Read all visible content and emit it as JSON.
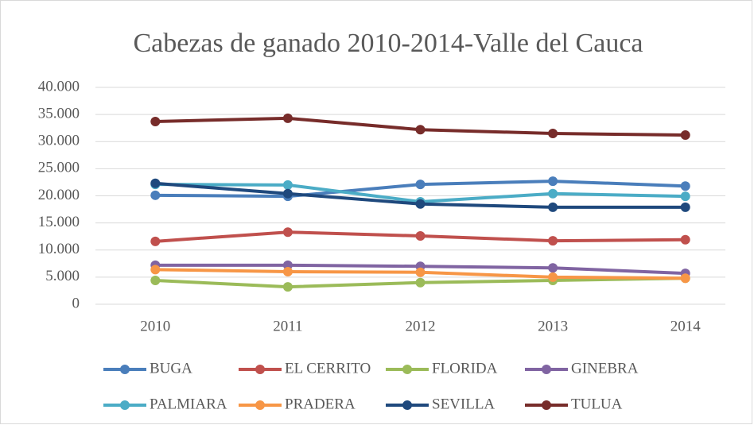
{
  "chart_data": {
    "type": "line",
    "title": "Cabezas de ganado 2010-2014-Valle del Cauca",
    "categories": [
      "2010",
      "2011",
      "2012",
      "2013",
      "2014"
    ],
    "series": [
      {
        "name": "BUGA",
        "color": "#4a7ebb",
        "values": [
          20100,
          19900,
          22100,
          22700,
          21800
        ]
      },
      {
        "name": "EL CERRITO",
        "color": "#c0504d",
        "values": [
          11600,
          13300,
          12600,
          11700,
          11900
        ]
      },
      {
        "name": "FLORIDA",
        "color": "#9bbb59",
        "values": [
          4400,
          3200,
          4000,
          4400,
          4800
        ]
      },
      {
        "name": "GINEBRA",
        "color": "#8064a2",
        "values": [
          7200,
          7200,
          7000,
          6700,
          5700
        ]
      },
      {
        "name": "PALMIARA",
        "color": "#4bacc6",
        "values": [
          22100,
          22000,
          18900,
          20400,
          19900
        ]
      },
      {
        "name": "PRADERA",
        "color": "#f79646",
        "values": [
          6400,
          6000,
          5900,
          5000,
          4800
        ]
      },
      {
        "name": "SEVILLA",
        "color": "#1f497d",
        "values": [
          22300,
          20400,
          18500,
          17900,
          17900
        ]
      },
      {
        "name": "TULUA",
        "color": "#772c2a",
        "values": [
          33700,
          34300,
          32200,
          31500,
          31200
        ]
      }
    ],
    "ylim": [
      0,
      40000
    ],
    "yticks": [
      0,
      {
        "value": 5000,
        "label": "5.000"
      },
      {
        "value": 10000,
        "label": "10.000"
      },
      {
        "value": 15000,
        "label": "15.000"
      },
      {
        "value": 20000,
        "label": "20.000"
      },
      {
        "value": 25000,
        "label": "25.000"
      },
      {
        "value": 30000,
        "label": "30.000"
      },
      {
        "value": 35000,
        "label": "35.000"
      },
      {
        "value": 40000,
        "label": "40.000"
      }
    ],
    "grid": true,
    "legend": "bottom"
  }
}
